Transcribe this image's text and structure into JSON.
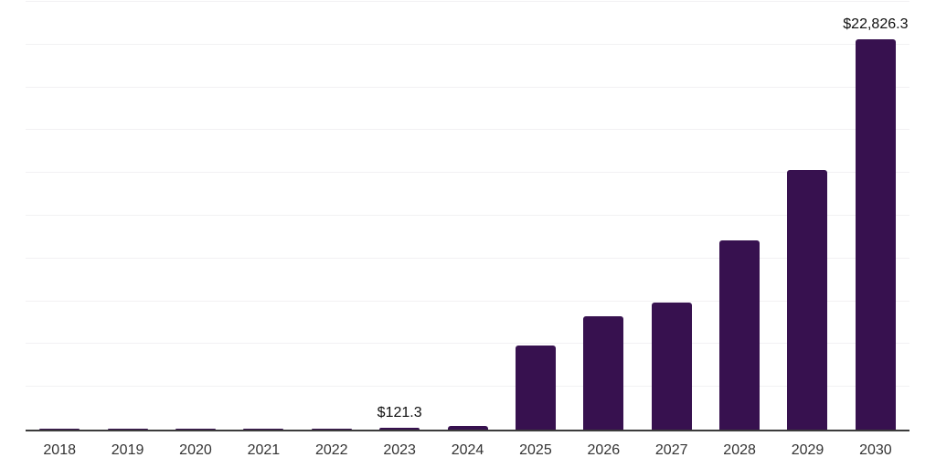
{
  "chart_data": {
    "type": "bar",
    "title": "",
    "xlabel": "",
    "ylabel": "",
    "categories": [
      "2018",
      "2019",
      "2020",
      "2021",
      "2022",
      "2023",
      "2024",
      "2025",
      "2026",
      "2027",
      "2028",
      "2029",
      "2030"
    ],
    "values": [
      3,
      6,
      14,
      30,
      60,
      121.3,
      240,
      4900,
      6650,
      7420,
      11050,
      15170,
      22826.3
    ],
    "data_labels": [
      "",
      "",
      "",
      "",
      "",
      "$121.3",
      "",
      "",
      "",
      "",
      "",
      "",
      "$22,826.3"
    ],
    "ylim": [
      0,
      25000
    ],
    "gridline_step": 2500,
    "grid": "horizontal",
    "legend_position": "none",
    "y_axis_tick_labels_visible": false,
    "colors": {
      "bar_fill": "#37114F",
      "axis_line": "#3b3b3b",
      "gridline": "#f2f1f3",
      "value_label_text": "#0f0f0f",
      "tick_label_text": "#333333",
      "background": "#ffffff"
    }
  }
}
